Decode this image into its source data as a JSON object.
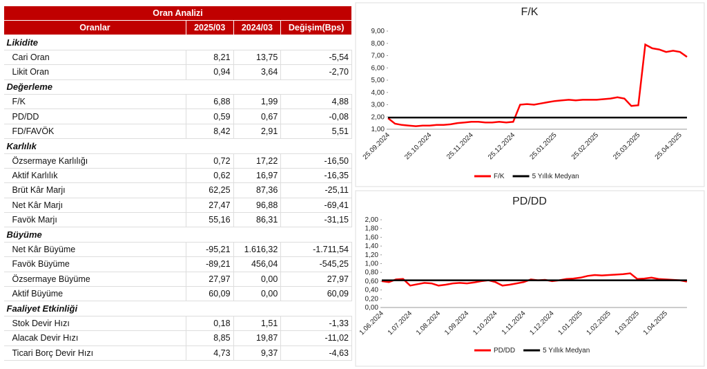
{
  "table": {
    "title": "Oran Analizi",
    "columns": [
      "Oranlar",
      "2025/03",
      "2024/03",
      "Değişim(Bps)"
    ],
    "sections": [
      {
        "title": "Likidite",
        "rows": [
          [
            "Cari Oran",
            "8,21",
            "13,75",
            "-5,54"
          ],
          [
            "Likit Oran",
            "0,94",
            "3,64",
            "-2,70"
          ]
        ]
      },
      {
        "title": "Değerleme",
        "rows": [
          [
            "F/K",
            "6,88",
            "1,99",
            "4,88"
          ],
          [
            "PD/DD",
            "0,59",
            "0,67",
            "-0,08"
          ],
          [
            "FD/FAVÖK",
            "8,42",
            "2,91",
            "5,51"
          ]
        ]
      },
      {
        "title": "Karlılık",
        "rows": [
          [
            "Özsermaye Karlılığı",
            "0,72",
            "17,22",
            "-16,50"
          ],
          [
            "Aktif Karlılık",
            "0,62",
            "16,97",
            "-16,35"
          ],
          [
            "Brüt Kâr Marjı",
            "62,25",
            "87,36",
            "-25,11"
          ],
          [
            "Net Kâr Marjı",
            "27,47",
            "96,88",
            "-69,41"
          ],
          [
            "Favök Marjı",
            "55,16",
            "86,31",
            "-31,15"
          ]
        ]
      },
      {
        "title": "Büyüme",
        "rows": [
          [
            "Net Kâr Büyüme",
            "-95,21",
            "1.616,32",
            "-1.711,54"
          ],
          [
            "Favök Büyüme",
            "-89,21",
            "456,04",
            "-545,25"
          ],
          [
            "Özsermaye Büyüme",
            "27,97",
            "0,00",
            "27,97"
          ],
          [
            "Aktif Büyüme",
            "60,09",
            "0,00",
            "60,09"
          ]
        ]
      },
      {
        "title": "Faaliyet Etkinliği",
        "rows": [
          [
            "Stok Devir Hızı",
            "0,18",
            "1,51",
            "-1,33"
          ],
          [
            "Alacak Devir Hızı",
            "8,85",
            "19,87",
            "-11,02"
          ],
          [
            "Ticari Borç Devir Hızı",
            "4,73",
            "9,37",
            "-4,63"
          ]
        ]
      }
    ]
  },
  "chart_data": [
    {
      "type": "line",
      "title": "F/K",
      "categories": [
        "25.09.2024",
        null,
        null,
        null,
        null,
        null,
        "25.10.2024",
        null,
        null,
        null,
        null,
        null,
        "25.11.2024",
        null,
        null,
        null,
        null,
        null,
        "25.12.2024",
        null,
        null,
        null,
        null,
        null,
        "25.01.2025",
        null,
        null,
        null,
        null,
        null,
        "25.02.2025",
        null,
        null,
        null,
        null,
        null,
        "25.03.2025",
        null,
        null,
        null,
        null,
        null,
        "25.04.2025",
        null
      ],
      "series": [
        {
          "name": "F/K",
          "color": "#ff0000",
          "values": [
            1.9,
            1.45,
            1.35,
            1.3,
            1.25,
            1.3,
            1.3,
            1.35,
            1.35,
            1.4,
            1.5,
            1.55,
            1.6,
            1.6,
            1.55,
            1.55,
            1.6,
            1.55,
            1.6,
            3.0,
            3.05,
            3.0,
            3.1,
            3.2,
            3.3,
            3.35,
            3.4,
            3.35,
            3.4,
            3.4,
            3.4,
            3.45,
            3.5,
            3.6,
            3.5,
            2.9,
            2.95,
            7.9,
            7.6,
            7.5,
            7.3,
            7.4,
            7.3,
            6.9
          ]
        },
        {
          "name": "5 Yıllık Medyan",
          "color": "#000000",
          "values": [
            1.95,
            1.95,
            1.95,
            1.95,
            1.95,
            1.95,
            1.95,
            1.95,
            1.95,
            1.95,
            1.95,
            1.95,
            1.95,
            1.95,
            1.95,
            1.95,
            1.95,
            1.95,
            1.95,
            1.95,
            1.95,
            1.95,
            1.95,
            1.95,
            1.95,
            1.95,
            1.95,
            1.95,
            1.95,
            1.95,
            1.95,
            1.95,
            1.95,
            1.95,
            1.95,
            1.95,
            1.95,
            1.95,
            1.95,
            1.95,
            1.95,
            1.95,
            1.95,
            1.95
          ]
        }
      ],
      "ylim": [
        1,
        9
      ],
      "yticks": [
        {
          "value": 1,
          "label": "1,00"
        },
        {
          "value": 2,
          "label": "2,00"
        },
        {
          "value": 3,
          "label": "3,00"
        },
        {
          "value": 4,
          "label": "4,00"
        },
        {
          "value": 5,
          "label": "5,00"
        },
        {
          "value": 6,
          "label": "6,00"
        },
        {
          "value": 7,
          "label": "7,00"
        },
        {
          "value": 8,
          "label": "8,00"
        },
        {
          "value": 9,
          "label": "9,00"
        }
      ]
    },
    {
      "type": "line",
      "title": "PD/DD",
      "categories": [
        "1.06.2024",
        null,
        null,
        null,
        "1.07.2024",
        null,
        null,
        null,
        "1.08.2024",
        null,
        null,
        null,
        "1.09.2024",
        null,
        null,
        null,
        "1.10.2024",
        null,
        null,
        null,
        "1.11.2024",
        null,
        null,
        null,
        "1.12.2024",
        null,
        null,
        null,
        "1.01.2025",
        null,
        null,
        null,
        "1.02.2025",
        null,
        null,
        null,
        "1.03.2025",
        null,
        null,
        null,
        "1.04.2025",
        null,
        null,
        null
      ],
      "series": [
        {
          "name": "PD/DD",
          "color": "#ff0000",
          "values": [
            0.6,
            0.58,
            0.64,
            0.65,
            0.5,
            0.53,
            0.56,
            0.55,
            0.5,
            0.52,
            0.55,
            0.56,
            0.55,
            0.57,
            0.6,
            0.62,
            0.58,
            0.5,
            0.52,
            0.55,
            0.58,
            0.64,
            0.62,
            0.63,
            0.6,
            0.62,
            0.65,
            0.66,
            0.68,
            0.72,
            0.74,
            0.73,
            0.74,
            0.75,
            0.76,
            0.78,
            0.65,
            0.66,
            0.68,
            0.65,
            0.64,
            0.63,
            0.62,
            0.59
          ]
        },
        {
          "name": "5 Yıllık Medyan",
          "color": "#000000",
          "values": [
            0.62,
            0.62,
            0.62,
            0.62,
            0.62,
            0.62,
            0.62,
            0.62,
            0.62,
            0.62,
            0.62,
            0.62,
            0.62,
            0.62,
            0.62,
            0.62,
            0.62,
            0.62,
            0.62,
            0.62,
            0.62,
            0.62,
            0.62,
            0.62,
            0.62,
            0.62,
            0.62,
            0.62,
            0.62,
            0.62,
            0.62,
            0.62,
            0.62,
            0.62,
            0.62,
            0.62,
            0.62,
            0.62,
            0.62,
            0.62,
            0.62,
            0.62,
            0.62,
            0.62
          ]
        }
      ],
      "ylim": [
        0,
        2
      ],
      "yticks": [
        {
          "value": 0,
          "label": "0,00"
        },
        {
          "value": 0.2,
          "label": "0,20"
        },
        {
          "value": 0.4,
          "label": "0,40"
        },
        {
          "value": 0.6,
          "label": "0,60"
        },
        {
          "value": 0.8,
          "label": "0,80"
        },
        {
          "value": 1,
          "label": "1,00"
        },
        {
          "value": 1.2,
          "label": "1,20"
        },
        {
          "value": 1.4,
          "label": "1,40"
        },
        {
          "value": 1.6,
          "label": "1,60"
        },
        {
          "value": 1.8,
          "label": "1,80"
        },
        {
          "value": 2,
          "label": "2,00"
        }
      ]
    }
  ]
}
